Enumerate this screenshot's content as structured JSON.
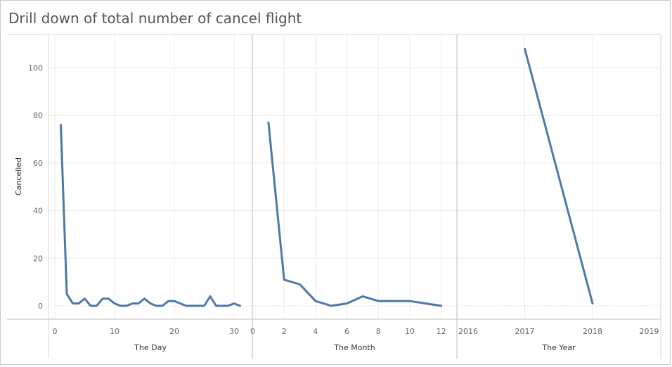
{
  "title": "Drill down of total number of cancel flight",
  "chart_data": {
    "type": "line",
    "title": "Drill down of total number of cancel flight",
    "ylabel": "Cancelled",
    "ylim": [
      0,
      110
    ],
    "yticks": [
      0,
      20,
      40,
      60,
      80,
      100
    ],
    "grid": true,
    "line_color": "#4e79a7",
    "panels": [
      {
        "xlabel": "The Day",
        "xlim": [
          0,
          31
        ],
        "xticks": [
          0,
          10,
          20,
          30
        ],
        "x": [
          1,
          2,
          3,
          4,
          5,
          6,
          7,
          8,
          9,
          10,
          11,
          12,
          13,
          14,
          15,
          16,
          17,
          18,
          19,
          20,
          21,
          22,
          23,
          24,
          25,
          26,
          27,
          28,
          29,
          30,
          31
        ],
        "y": [
          76,
          5,
          1,
          1,
          3,
          0,
          0,
          3,
          3,
          1,
          0,
          0,
          1,
          1,
          3,
          1,
          0,
          0,
          2,
          2,
          1,
          0,
          0,
          0,
          0,
          4,
          0,
          0,
          0,
          1,
          0
        ]
      },
      {
        "xlabel": "The Month",
        "xlim": [
          0,
          12
        ],
        "xticks": [
          0,
          2,
          4,
          6,
          8,
          10,
          12
        ],
        "x": [
          1,
          2,
          3,
          4,
          5,
          6,
          7,
          8,
          9,
          10,
          11,
          12
        ],
        "y": [
          77,
          11,
          9,
          2,
          0,
          1,
          4,
          2,
          2,
          2,
          1,
          0
        ]
      },
      {
        "xlabel": "The Year",
        "xlim": [
          2016,
          2019
        ],
        "xticks": [
          2016,
          2017,
          2018,
          2019
        ],
        "x": [
          2017,
          2018
        ],
        "y": [
          108,
          1
        ]
      }
    ]
  }
}
